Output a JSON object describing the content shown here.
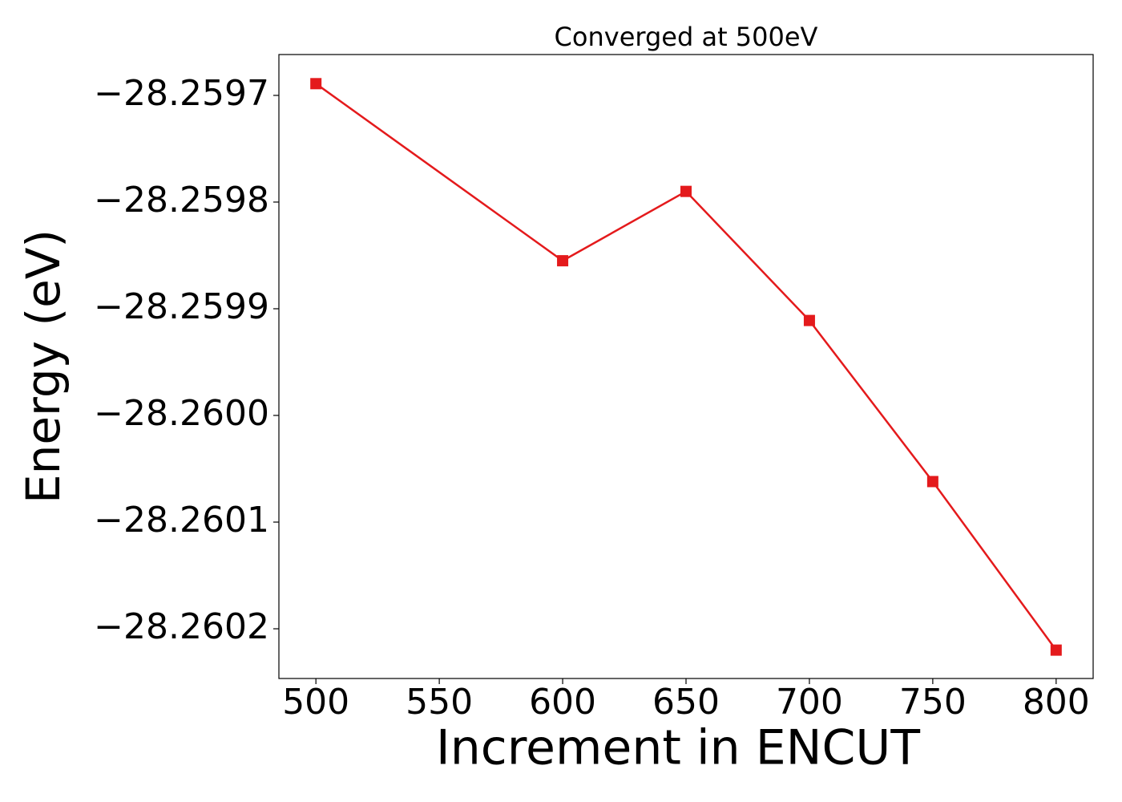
{
  "chart_data": {
    "type": "line",
    "title": "Converged at 500eV",
    "xlabel": "Increment in ENCUT",
    "ylabel": "Energy (eV)",
    "x": [
      500,
      600,
      650,
      700,
      750,
      800
    ],
    "series": [
      {
        "name": null,
        "color": "#e41a1c",
        "marker": "square",
        "values": [
          -28.259689,
          -28.259855,
          -28.25979,
          -28.259911,
          -28.260062,
          -28.26022
        ]
      }
    ],
    "xlim": [
      485,
      815
    ],
    "ylim": [
      -28.2602466,
      -28.2596617
    ],
    "xticks": [
      500,
      550,
      600,
      650,
      700,
      750,
      800
    ],
    "yticks": [
      {
        "value": -28.2597,
        "label": "−28.2597"
      },
      {
        "value": -28.2598,
        "label": "−28.2598"
      },
      {
        "value": -28.2599,
        "label": "−28.2599"
      },
      {
        "value": -28.26,
        "label": "−28.2600"
      },
      {
        "value": -28.2601,
        "label": "−28.2601"
      },
      {
        "value": -28.2602,
        "label": "−28.2602"
      }
    ],
    "grid": false
  }
}
